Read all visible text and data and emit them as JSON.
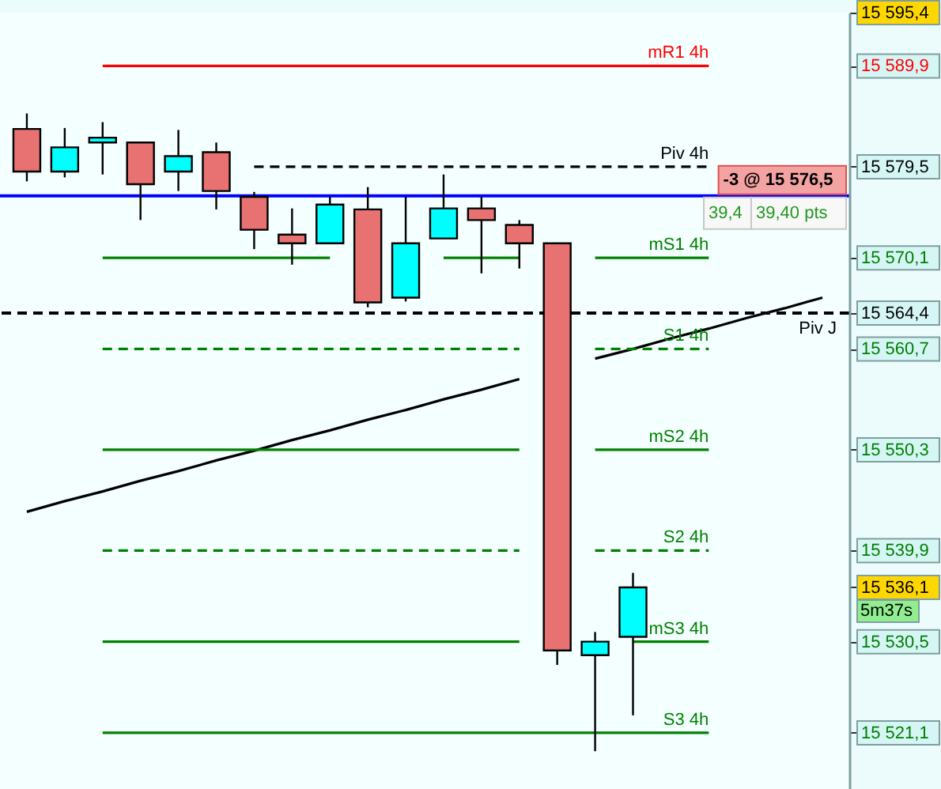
{
  "chart_data": {
    "type": "candlestick",
    "categories": [
      null,
      null,
      null,
      null,
      null,
      null,
      null,
      null,
      null,
      null,
      null,
      null,
      null,
      null,
      null,
      null,
      null,
      null,
      null,
      null,
      null,
      null
    ],
    "ohlc": [
      [
        15583.4,
        15585.0,
        15578.0,
        15579.0
      ],
      [
        15579.0,
        15583.5,
        15578.4,
        15581.5
      ],
      [
        15582.0,
        15584.1,
        15578.7,
        15582.5
      ],
      [
        15582.0,
        15582.0,
        15574.0,
        15577.7
      ],
      [
        15579.0,
        15583.3,
        15577.0,
        15580.6
      ],
      [
        15581.0,
        15582.0,
        15575.1,
        15577.0
      ],
      [
        15576.4,
        15576.9,
        15571.0,
        15573.0
      ],
      [
        15572.5,
        15575.2,
        15569.4,
        15571.6
      ],
      [
        15571.6,
        15576.4,
        15571.6,
        15575.6
      ],
      [
        15575.1,
        15577.4,
        15565.0,
        15565.5
      ],
      [
        15566.0,
        15576.4,
        15565.6,
        15571.6
      ],
      [
        15572.1,
        15578.7,
        15572.1,
        15575.2
      ],
      [
        15575.2,
        15576.4,
        15568.5,
        15574.0
      ],
      [
        15573.5,
        15574.0,
        15569.0,
        15571.6
      ],
      [
        15571.6,
        15571.6,
        15528.1,
        15529.6
      ],
      [
        15529.1,
        15531.5,
        15519.2,
        15530.5
      ],
      [
        15531.0,
        15537.6,
        15522.9,
        15536.1
      ],
      null,
      null,
      null,
      null,
      null
    ],
    "colors": [
      "#e87272",
      "#00ffff",
      "#00ffff",
      "#e87272",
      "#00ffff",
      "#e87272",
      "#e87272",
      "#e87272",
      "#00ffff",
      "#e87272",
      "#00ffff",
      "#00ffff",
      "#e87272",
      "#e87272",
      "#e87272",
      "#00ffff",
      "#00ffff",
      null,
      null,
      null,
      null,
      null
    ],
    "series": [
      {
        "type": "line",
        "color": "#000000",
        "line_style": "solid",
        "values": [
          15543.9,
          15545.0,
          15546.0,
          15547.1,
          15548.1,
          15549.2,
          15550.2,
          15551.3,
          15552.3,
          15553.4,
          15554.4,
          15555.5,
          15556.5,
          15557.6,
          null,
          15559.7,
          15560.7,
          15561.8,
          15562.8,
          15563.9,
          15564.9,
          15566.0
        ]
      },
      {
        "name": "mR1 4h",
        "type": "line",
        "color": "#ff0000",
        "line_style": "solid",
        "values": [
          null,
          null,
          15589.9,
          15589.9,
          15589.9,
          15589.9,
          15589.9,
          15589.9,
          15589.9,
          15589.9,
          15589.9,
          15589.9,
          15589.9,
          15589.9,
          15589.9,
          15589.9,
          15589.9,
          15589.9,
          15589.9,
          null,
          null,
          null
        ]
      },
      {
        "name": "Piv 4h",
        "type": "line",
        "color": "#000000",
        "line_style": "dashed",
        "values": [
          null,
          null,
          null,
          null,
          null,
          null,
          15579.5,
          15579.5,
          15579.5,
          15579.5,
          15579.5,
          15579.5,
          15579.5,
          15579.5,
          15579.5,
          15579.5,
          15579.5,
          15579.5,
          15579.5,
          null,
          null,
          null
        ]
      },
      {
        "name": "mS1 4h",
        "type": "line",
        "color": "#008000",
        "line_style": "solid",
        "values": [
          null,
          null,
          15570.1,
          15570.1,
          15570.1,
          15570.1,
          15570.1,
          15570.1,
          15570.1,
          null,
          null,
          15570.1,
          15570.1,
          15570.1,
          null,
          15570.1,
          15570.1,
          15570.1,
          15570.1,
          null,
          null,
          null
        ]
      },
      {
        "name": "S1 4h",
        "type": "line",
        "color": "#008000",
        "line_style": "dashed",
        "values": [
          null,
          null,
          15560.7,
          15560.7,
          15560.7,
          15560.7,
          15560.7,
          15560.7,
          15560.7,
          15560.7,
          15560.7,
          15560.7,
          15560.7,
          15560.7,
          null,
          15560.7,
          15560.7,
          15560.7,
          15560.7,
          null,
          null,
          null
        ]
      },
      {
        "name": "mS2 4h",
        "type": "line",
        "color": "#008000",
        "line_style": "solid",
        "values": [
          null,
          null,
          15550.3,
          15550.3,
          15550.3,
          15550.3,
          15550.3,
          15550.3,
          15550.3,
          15550.3,
          15550.3,
          15550.3,
          15550.3,
          15550.3,
          null,
          15550.3,
          15550.3,
          15550.3,
          15550.3,
          null,
          null,
          null
        ]
      },
      {
        "name": "S2 4h",
        "type": "line",
        "color": "#008000",
        "line_style": "dashed",
        "values": [
          null,
          null,
          15539.9,
          15539.9,
          15539.9,
          15539.9,
          15539.9,
          15539.9,
          15539.9,
          15539.9,
          15539.9,
          15539.9,
          15539.9,
          15539.9,
          null,
          15539.9,
          15539.9,
          15539.9,
          15539.9,
          null,
          null,
          null
        ]
      },
      {
        "name": "mS3 4h",
        "type": "line",
        "color": "#008000",
        "line_style": "solid",
        "values": [
          null,
          null,
          15530.5,
          15530.5,
          15530.5,
          15530.5,
          15530.5,
          15530.5,
          15530.5,
          15530.5,
          15530.5,
          15530.5,
          15530.5,
          15530.5,
          null,
          null,
          15530.5,
          15530.5,
          15530.5,
          null,
          null,
          null
        ]
      },
      {
        "name": "S3 4h",
        "type": "line",
        "color": "#008000",
        "line_style": "solid",
        "values": [
          null,
          null,
          15521.1,
          15521.1,
          15521.1,
          15521.1,
          15521.1,
          15521.1,
          15521.1,
          15521.1,
          15521.1,
          15521.1,
          15521.1,
          15521.1,
          15521.1,
          15521.1,
          15521.1,
          15521.1,
          15521.1,
          null,
          null,
          null
        ]
      }
    ],
    "ref_lines": [
      {
        "axis": "y",
        "value": 15576.5,
        "color": "#0000ff"
      },
      {
        "axis": "y",
        "value": 15564.4,
        "label": "Piv J",
        "color": "#000000",
        "line_style": "dashed"
      }
    ],
    "annotations": [
      {
        "text": "-3 @ 15 576,5",
        "y": 15576.5
      },
      {
        "text": "39,4",
        "y": 15576.5
      },
      {
        "text": "39,40 pts",
        "y": 15576.5
      },
      "5m37s"
    ],
    "ylim": [
      15515.3,
      15595.4
    ],
    "yticks": [
      {
        "value": 15595.4,
        "label": "15 595,4"
      },
      {
        "value": 15589.9,
        "label": "15 589,9"
      },
      {
        "value": 15579.5,
        "label": "15 579,5"
      },
      {
        "value": 15570.1,
        "label": "15 570,1"
      },
      {
        "value": 15564.4,
        "label": "15 564,4"
      },
      {
        "value": 15560.7,
        "label": "15 560,7"
      },
      {
        "value": 15550.3,
        "label": "15 550,3"
      },
      {
        "value": 15539.9,
        "label": "15 539,9"
      },
      {
        "value": 15536.1,
        "label": "15 536,1"
      },
      {
        "value": 15530.5,
        "label": "15 530,5"
      },
      {
        "value": 15521.1,
        "label": "15 521,1"
      }
    ],
    "tick_labels": "y"
  }
}
